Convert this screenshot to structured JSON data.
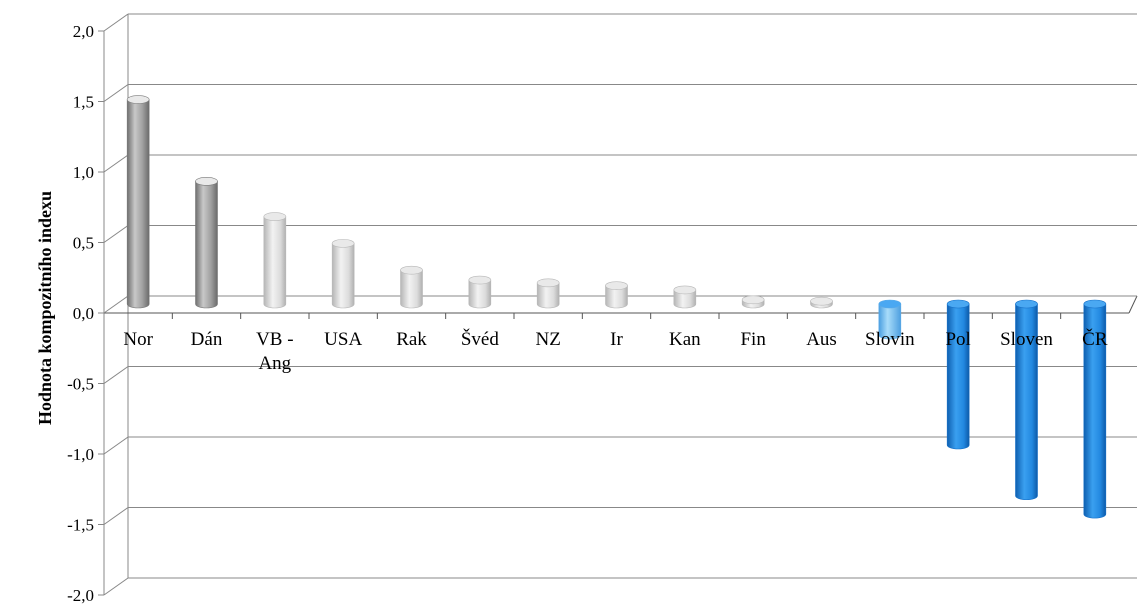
{
  "chart_data": {
    "type": "bar",
    "title": "",
    "xlabel": "",
    "ylabel": "Hodnota kompozitního indexu",
    "categories": [
      "Nor",
      "Dán",
      "VB - Ang",
      "USA",
      "Rak",
      "Švéd",
      "NZ",
      "Ir",
      "Kan",
      "Fin",
      "Aus",
      "Slovin",
      "Pol",
      "Sloven",
      "ČR"
    ],
    "values": [
      1.45,
      0.87,
      0.62,
      0.43,
      0.24,
      0.17,
      0.15,
      0.13,
      0.1,
      0.03,
      0.02,
      -0.22,
      -1.0,
      -1.36,
      -1.49
    ],
    "ylim": [
      -2.0,
      2.0
    ],
    "yticks": [
      "2,0",
      "1,5",
      "1,0",
      "0,5",
      "0,0",
      "-0,5",
      "-1,0",
      "-1,5",
      "-2,0"
    ],
    "grid": true,
    "legend": "none",
    "style": "3d-cylinder",
    "colors": {
      "positive_bars": "#d4d4d4",
      "positive_bars_dark": "#8c8c8c",
      "negative_bars": "#1f86e0",
      "negative_bars_light": "#7cc2f2",
      "gridline": "#888888"
    }
  }
}
